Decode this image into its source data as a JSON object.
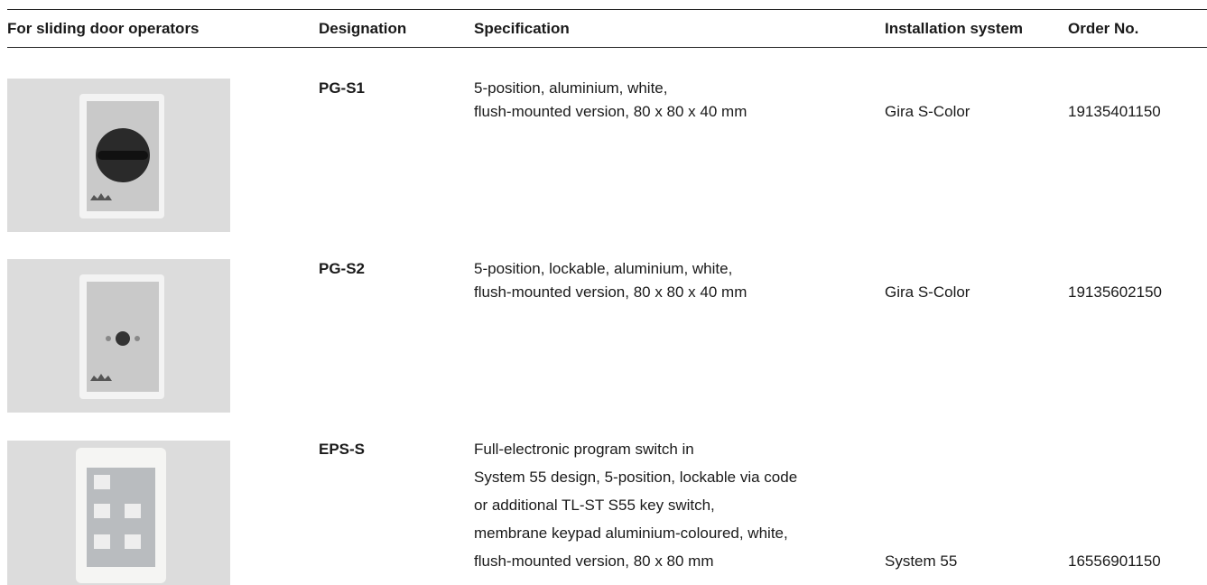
{
  "table": {
    "header": [
      "For sliding door operators",
      "Designation",
      "Specification",
      "Installation system",
      "Order No."
    ],
    "rows": [
      {
        "designation": "PG-S1",
        "specification": [
          "5-position, aluminium, white,",
          "flush-mounted version, 80 x 80 x 40 mm"
        ],
        "installation_system": "Gira S-Color",
        "order_no": "19135401150"
      },
      {
        "designation": "PG-S2",
        "specification": [
          "5-position, lockable, aluminium, white,",
          "flush-mounted version, 80 x 80 x 40 mm"
        ],
        "installation_system": "Gira S-Color",
        "order_no": "19135602150"
      },
      {
        "designation": "EPS-S",
        "specification": [
          "Full-electronic program switch in",
          "System 55 design, 5-position, lockable via code",
          "or additional TL-ST S55 key switch,",
          "membrane keypad aluminium-coloured, white,",
          "flush-mounted version, 80 x 80 mm"
        ],
        "installation_system": "System 55",
        "order_no": "16556901150"
      }
    ]
  }
}
